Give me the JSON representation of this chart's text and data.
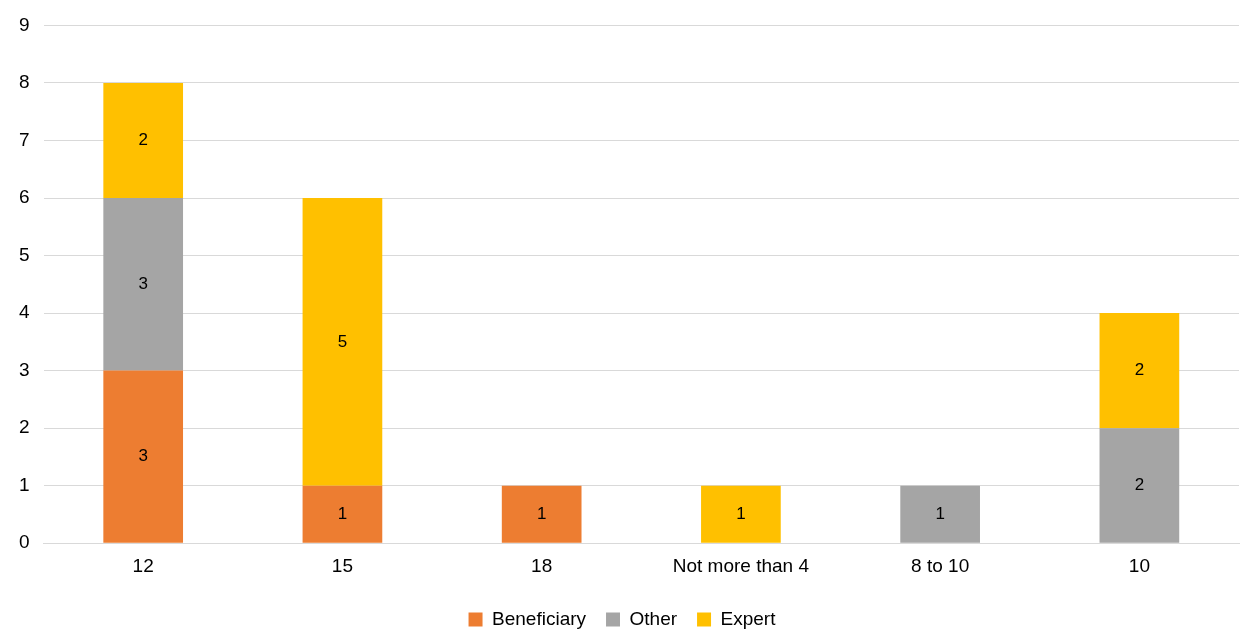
{
  "chart_data": {
    "type": "bar",
    "stacked": true,
    "categories": [
      "12",
      "15",
      "18",
      "Not more than 4",
      "8 to 10",
      "10"
    ],
    "series": [
      {
        "name": "Beneficiary",
        "color": "#ed7d31",
        "values": [
          3,
          1,
          1,
          null,
          null,
          null
        ]
      },
      {
        "name": "Other",
        "color": "#a5a5a5",
        "values": [
          3,
          null,
          null,
          null,
          1,
          2
        ]
      },
      {
        "name": "Expert",
        "color": "#ffc000",
        "values": [
          2,
          5,
          null,
          1,
          null,
          2
        ]
      }
    ],
    "ylim": [
      0,
      9
    ],
    "yticks": [
      0,
      1,
      2,
      3,
      4,
      5,
      6,
      7,
      8,
      9
    ],
    "grid": "y",
    "legend": "bottom",
    "data_labels": true
  }
}
